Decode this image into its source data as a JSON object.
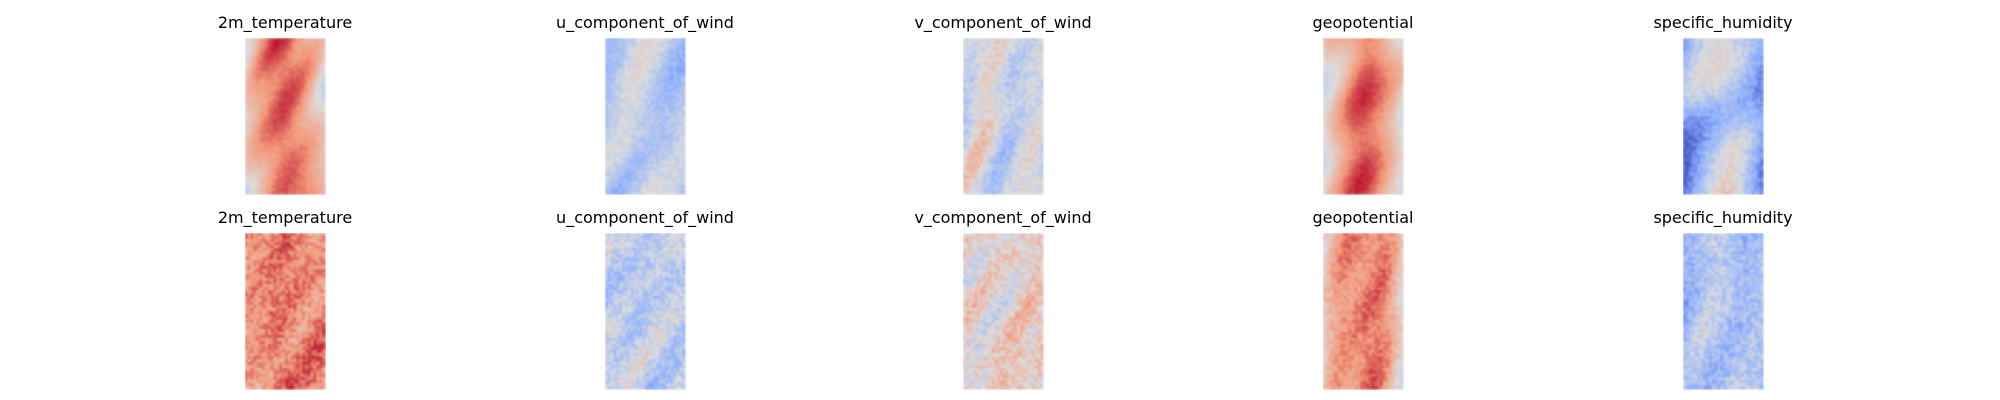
{
  "chart_data": {
    "type": "heatmap",
    "colormap": "coolwarm",
    "grid": false,
    "axes_visible": false,
    "rows": 2,
    "columns": 5,
    "colors": {
      "cold": "#3b4cc0",
      "neutral": "#dddddd",
      "warm": "#b40426"
    },
    "panels": [
      {
        "row": 0,
        "col": 0,
        "title": "2m_temperature",
        "mean": 0.72,
        "contrast": 0.28,
        "stripe": 0.45,
        "speckle": 0.15
      },
      {
        "row": 0,
        "col": 1,
        "title": "u_component_of_wind",
        "mean": 0.4,
        "contrast": 0.25,
        "stripe": 0.05,
        "speckle": 0.35
      },
      {
        "row": 0,
        "col": 2,
        "title": "v_component_of_wind",
        "mean": 0.46,
        "contrast": 0.22,
        "stripe": 0.0,
        "speckle": 0.45
      },
      {
        "row": 0,
        "col": 3,
        "title": "geopotential",
        "mean": 0.68,
        "contrast": 0.26,
        "stripe": 0.4,
        "speckle": 0.15
      },
      {
        "row": 0,
        "col": 4,
        "title": "specific_humidity",
        "mean": 0.32,
        "contrast": 0.35,
        "stripe": 0.4,
        "speckle": 0.4
      },
      {
        "row": 1,
        "col": 0,
        "title": "2m_temperature",
        "mean": 0.78,
        "contrast": 0.14,
        "stripe": 0.1,
        "speckle": 0.55
      },
      {
        "row": 1,
        "col": 1,
        "title": "u_component_of_wind",
        "mean": 0.4,
        "contrast": 0.18,
        "stripe": 0.0,
        "speckle": 0.6
      },
      {
        "row": 1,
        "col": 2,
        "title": "v_component_of_wind",
        "mean": 0.55,
        "contrast": 0.18,
        "stripe": 0.0,
        "speckle": 0.65
      },
      {
        "row": 1,
        "col": 3,
        "title": "geopotential",
        "mean": 0.7,
        "contrast": 0.2,
        "stripe": 0.35,
        "speckle": 0.4
      },
      {
        "row": 1,
        "col": 4,
        "title": "specific_humidity",
        "mean": 0.34,
        "contrast": 0.16,
        "stripe": 0.1,
        "speckle": 0.6
      }
    ]
  }
}
